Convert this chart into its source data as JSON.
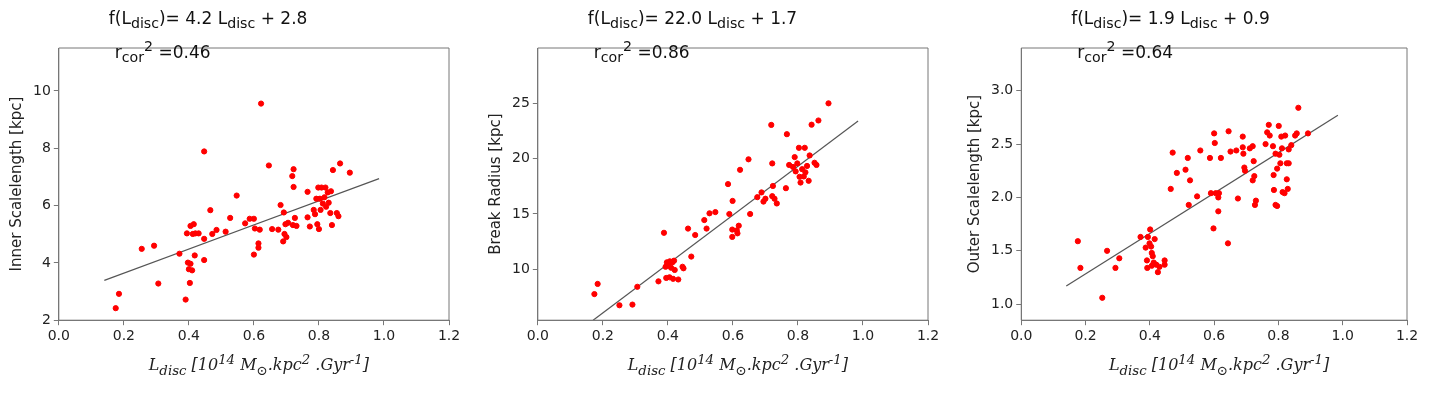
{
  "chart_data": [
    {
      "type": "scatter",
      "xlabel": "L$_{disc}$ [10$^{14}$ M$_{⊙}$.kpc$^{2}$ .Gyr$^{-1}$]",
      "ylabel": "Inner Scalelength [kpc]",
      "annotations": [
        "f(L$_{disc}$)= 4.2 L$_{disc}$ + 2.8",
        "r$_{cor}$$^{2}$ =0.46"
      ],
      "xlim": [
        0,
        1.2
      ],
      "xticks": [
        {
          "value": 0,
          "label": "0.0"
        },
        {
          "value": 0.2,
          "label": "0.2"
        },
        {
          "value": 0.4,
          "label": "0.4"
        },
        {
          "value": 0.6,
          "label": "0.6"
        },
        {
          "value": 0.8,
          "label": "0.8"
        },
        {
          "value": 1,
          "label": "1.0"
        },
        {
          "value": 1.2,
          "label": "1.2"
        }
      ],
      "ylim": [
        2,
        11.5
      ],
      "yticks": [
        2,
        4,
        6,
        8,
        10
      ],
      "grid": false,
      "legend": false,
      "series": [
        {
          "marker": "circle",
          "color": "#ff0000",
          "x": [
            0.175,
            0.185,
            0.255,
            0.293,
            0.306,
            0.371,
            0.39,
            0.394,
            0.405,
            0.415,
            0.397,
            0.4,
            0.405,
            0.41,
            0.403,
            0.412,
            0.42,
            0.43,
            0.418,
            0.447,
            0.447,
            0.447,
            0.466,
            0.472,
            0.485,
            0.513,
            0.527,
            0.547,
            0.573,
            0.587,
            0.6,
            0.6,
            0.603,
            0.614,
            0.614,
            0.618,
            0.622,
            0.646,
            0.656,
            0.675,
            0.682,
            0.692,
            0.69,
            0.694,
            0.7,
            0.697,
            0.705,
            0.718,
            0.722,
            0.722,
            0.72,
            0.726,
            0.731,
            0.765,
            0.765,
            0.772,
            0.784,
            0.788,
            0.792,
            0.795,
            0.798,
            0.8,
            0.803,
            0.808,
            0.805,
            0.812,
            0.817,
            0.82,
            0.822,
            0.827,
            0.83,
            0.835,
            0.837,
            0.84,
            0.843,
            0.855,
            0.86,
            0.865,
            0.895
          ],
          "values": [
            2.42,
            2.92,
            4.49,
            4.6,
            3.28,
            4.32,
            2.72,
            5.03,
            5.29,
            5.35,
            4.01,
            3.78,
            3.97,
            3.74,
            3.3,
            5.01,
            5.03,
            5.03,
            4.26,
            7.89,
            4.84,
            4.1,
            5.84,
            5.01,
            5.15,
            5.09,
            5.57,
            6.35,
            5.38,
            5.54,
            5.54,
            4.29,
            5.2,
            4.68,
            4.53,
            5.16,
            9.56,
            7.4,
            5.18,
            5.16,
            6.02,
            5.76,
            4.75,
            5.01,
            4.9,
            5.35,
            5.4,
            7.03,
            7.27,
            6.65,
            5.32,
            5.57,
            5.29,
            6.48,
            5.59,
            5.27,
            5.85,
            5.7,
            6.24,
            5.35,
            6.63,
            5.18,
            6.24,
            6.63,
            5.85,
            6.07,
            6.29,
            6.63,
            5.96,
            6.46,
            6.1,
            5.74,
            6.5,
            5.32,
            7.24,
            5.74,
            5.63,
            7.47,
            7.15
          ]
        },
        {
          "type": "line",
          "marker": "none",
          "color": "#555555",
          "line_style": "solid",
          "x": [
            0.14,
            0.985
          ],
          "values": [
            3.39,
            6.94
          ]
        }
      ]
    },
    {
      "type": "scatter",
      "xlabel": "L$_{disc}$ [10$^{14}$ M$_{⊙}$.kpc$^{2}$ .Gyr$^{-1}$]",
      "ylabel": "Break Radius [kpc]",
      "annotations": [
        "f(L$_{disc}$)= 22.0 L$_{disc}$ + 1.7",
        "r$_{cor}$$^{2}$ =0.86"
      ],
      "xlim": [
        0,
        1.2
      ],
      "xticks": [
        {
          "value": 0,
          "label": "0.0"
        },
        {
          "value": 0.2,
          "label": "0.2"
        },
        {
          "value": 0.4,
          "label": "0.4"
        },
        {
          "value": 0.6,
          "label": "0.6"
        },
        {
          "value": 0.8,
          "label": "0.8"
        },
        {
          "value": 1,
          "label": "1.0"
        },
        {
          "value": 1.2,
          "label": "1.2"
        }
      ],
      "ylim": [
        5.4,
        30
      ],
      "yticks": [
        10,
        15,
        20,
        25
      ],
      "grid": false,
      "legend": false,
      "series": [
        {
          "marker": "circle",
          "color": "#ff0000",
          "x": [
            0.174,
            0.184,
            0.251,
            0.291,
            0.306,
            0.371,
            0.388,
            0.393,
            0.397,
            0.402,
            0.406,
            0.41,
            0.414,
            0.419,
            0.395,
            0.405,
            0.416,
            0.421,
            0.432,
            0.445,
            0.448,
            0.472,
            0.462,
            0.484,
            0.512,
            0.519,
            0.528,
            0.546,
            0.585,
            0.589,
            0.599,
            0.598,
            0.598,
            0.612,
            0.614,
            0.618,
            0.622,
            0.648,
            0.653,
            0.675,
            0.688,
            0.694,
            0.7,
            0.718,
            0.721,
            0.723,
            0.721,
            0.728,
            0.735,
            0.763,
            0.766,
            0.773,
            0.785,
            0.79,
            0.793,
            0.798,
            0.803,
            0.805,
            0.808,
            0.813,
            0.818,
            0.821,
            0.823,
            0.828,
            0.833,
            0.836,
            0.842,
            0.851,
            0.857,
            0.863,
            0.894
          ],
          "values": [
            7.76,
            8.68,
            6.75,
            6.81,
            8.42,
            8.91,
            13.3,
            10.23,
            10.63,
            10.34,
            10.72,
            10.14,
            10.63,
            10.78,
            9.22,
            9.28,
            9.14,
            9.94,
            9.08,
            10.23,
            10.09,
            11.15,
            13.68,
            13.1,
            14.45,
            13.68,
            15.06,
            15.17,
            17.7,
            15.0,
            16.18,
            13.59,
            12.93,
            13.51,
            13.25,
            13.94,
            18.99,
            19.94,
            15.0,
            16.52,
            16.95,
            16.12,
            16.38,
            23.05,
            19.57,
            17.53,
            16.61,
            16.38,
            15.95,
            17.33,
            22.21,
            19.43,
            19.25,
            20.14,
            18.85,
            19.57,
            20.98,
            18.36,
            17.84,
            19.05,
            18.39,
            20.98,
            18.76,
            19.34,
            18.0,
            20.29,
            23.07,
            19.63,
            19.43,
            23.45,
            25.0
          ]
        },
        {
          "type": "line",
          "marker": "none",
          "color": "#555555",
          "line_style": "solid",
          "x": [
            0.17,
            0.985
          ],
          "values": [
            5.4,
            23.4
          ]
        }
      ]
    },
    {
      "type": "scatter",
      "xlabel": "L$_{disc}$ [10$^{14}$ M$_{⊙}$.kpc$^{2}$ .Gyr$^{-1}$]",
      "ylabel": "Outer Scalelength [kpc]",
      "annotations": [
        "f(L$_{disc}$)= 1.9 L$_{disc}$ + 0.9",
        "r$_{cor}$$^{2}$ =0.64"
      ],
      "xlim": [
        0,
        1.2
      ],
      "xticks": [
        {
          "value": 0,
          "label": "0.0"
        },
        {
          "value": 0.2,
          "label": "0.2"
        },
        {
          "value": 0.4,
          "label": "0.4"
        },
        {
          "value": 0.6,
          "label": "0.6"
        },
        {
          "value": 0.8,
          "label": "0.8"
        },
        {
          "value": 1,
          "label": "1.0"
        },
        {
          "value": 1.2,
          "label": "1.2"
        }
      ],
      "ylim": [
        0.85,
        3.4
      ],
      "yticks": [
        {
          "value": 1,
          "label": "1.0"
        },
        {
          "value": 1.5,
          "label": "1.5"
        },
        {
          "value": 2,
          "label": "2.0"
        },
        {
          "value": 2.5,
          "label": "2.5"
        },
        {
          "value": 3,
          "label": "3.0"
        }
      ],
      "grid": false,
      "legend": false,
      "series": [
        {
          "marker": "circle",
          "color": "#ff0000",
          "x": [
            0.176,
            0.184,
            0.252,
            0.267,
            0.293,
            0.305,
            0.371,
            0.394,
            0.401,
            0.387,
            0.391,
            0.392,
            0.399,
            0.404,
            0.406,
            0.409,
            0.412,
            0.415,
            0.406,
            0.42,
            0.425,
            0.43,
            0.446,
            0.446,
            0.465,
            0.471,
            0.484,
            0.511,
            0.518,
            0.521,
            0.525,
            0.547,
            0.557,
            0.587,
            0.59,
            0.598,
            0.6,
            0.602,
            0.605,
            0.613,
            0.615,
            0.613,
            0.621,
            0.645,
            0.643,
            0.651,
            0.669,
            0.674,
            0.689,
            0.689,
            0.691,
            0.694,
            0.696,
            0.711,
            0.72,
            0.72,
            0.723,
            0.725,
            0.727,
            0.73,
            0.76,
            0.765,
            0.77,
            0.773,
            0.783,
            0.785,
            0.786,
            0.791,
            0.796,
            0.791,
            0.796,
            0.801,
            0.803,
            0.806,
            0.809,
            0.811,
            0.813,
            0.819,
            0.821,
            0.826,
            0.826,
            0.832,
            0.829,
            0.832,
            0.84,
            0.852,
            0.857,
            0.862,
            0.892
          ],
          "values": [
            1.59,
            1.34,
            1.06,
            1.5,
            1.34,
            1.43,
            1.63,
            1.63,
            1.7,
            1.53,
            1.41,
            1.34,
            1.57,
            1.54,
            1.48,
            1.45,
            1.39,
            1.61,
            1.36,
            1.37,
            1.3,
            1.35,
            1.41,
            1.37,
            2.08,
            2.42,
            2.23,
            2.26,
            2.37,
            1.93,
            2.16,
            2.01,
            2.44,
            2.37,
            2.04,
            1.71,
            2.6,
            2.51,
            2.04,
            2.0,
            2.04,
            1.87,
            2.37,
            2.62,
            1.57,
            2.43,
            2.44,
            1.99,
            2.57,
            2.47,
            2.41,
            2.28,
            2.25,
            2.46,
            2.48,
            2.16,
            2.34,
            2.2,
            1.93,
            1.97,
            2.5,
            2.61,
            2.68,
            2.58,
            2.48,
            2.21,
            2.07,
            1.93,
            1.92,
            2.41,
            2.27,
            2.67,
            2.4,
            2.32,
            2.57,
            2.46,
            2.05,
            2.04,
            2.58,
            2.32,
            2.17,
            2.32,
            2.08,
            2.45,
            2.49,
            2.58,
            2.6,
            2.84,
            2.6
          ]
        },
        {
          "type": "line",
          "marker": "none",
          "color": "#555555",
          "line_style": "solid",
          "x": [
            0.14,
            0.985
          ],
          "values": [
            1.17,
            2.77
          ]
        }
      ]
    }
  ]
}
